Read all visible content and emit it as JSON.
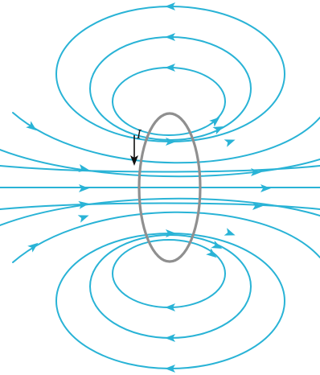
{
  "figure": {
    "current_label": "I",
    "colors": {
      "field_line": "#29b3d6",
      "arrowhead": "#29b3d6",
      "loop": "#8f8f8f",
      "current_arrow": "#111111",
      "background": "#ffffff"
    },
    "icons": {
      "field_direction": "arrowhead-icon",
      "current_direction": "down-arrow-icon"
    }
  }
}
